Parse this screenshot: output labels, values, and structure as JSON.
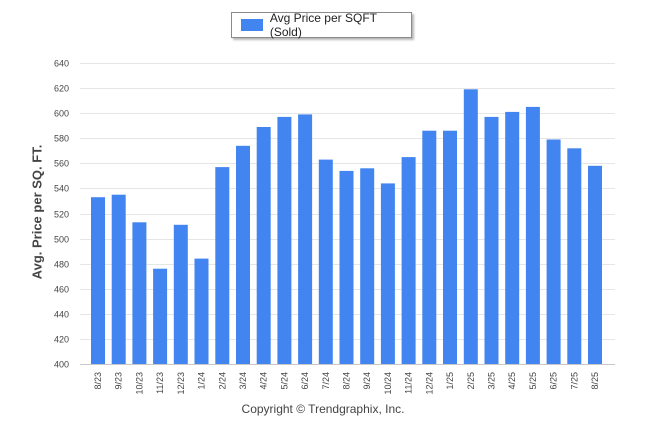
{
  "chart_data": {
    "type": "bar",
    "categories": [
      "8/23",
      "9/23",
      "10/23",
      "11/23",
      "12/23",
      "1/24",
      "2/24",
      "3/24",
      "4/24",
      "5/24",
      "6/24",
      "7/24",
      "8/24",
      "9/24",
      "10/24",
      "11/24",
      "12/24",
      "1/25",
      "2/25",
      "3/25",
      "4/25",
      "5/25",
      "6/25",
      "7/25",
      "8/25"
    ],
    "series": [
      {
        "name": "Avg Price per SQFT (Sold)",
        "values": [
          533,
          535,
          513,
          476,
          511,
          484,
          557,
          574,
          589,
          597,
          599,
          563,
          554,
          556,
          544,
          565,
          586,
          586,
          619,
          597,
          601,
          605,
          579,
          572,
          558
        ]
      }
    ],
    "ylabel": "Avg. Price per SQ. FT.",
    "ylim": [
      400,
      640
    ],
    "yticks": [
      400,
      420,
      440,
      460,
      480,
      500,
      520,
      540,
      560,
      580,
      600,
      620,
      640
    ],
    "bar_color": "#4385f0",
    "grid": true,
    "legend_position": "top-center"
  },
  "legend": {
    "label": "Avg Price per SQFT (Sold)"
  },
  "copyright": "Copyright © Trendgraphix, Inc."
}
